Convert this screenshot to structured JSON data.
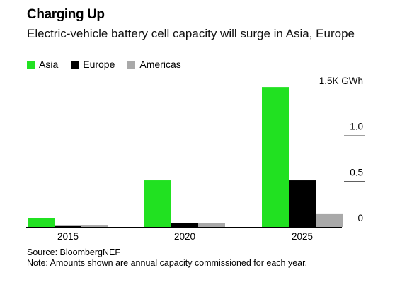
{
  "title": "Charging Up",
  "subtitle": "Electric-vehicle battery cell capacity will surge in Asia, Europe",
  "legend": [
    {
      "label": "Asia",
      "color": "#21e121"
    },
    {
      "label": "Europe",
      "color": "#000000"
    },
    {
      "label": "Americas",
      "color": "#a9a9a9"
    }
  ],
  "source": "Source: BloombergNEF",
  "note": "Note: Amounts shown are annual capacity commissioned for each year.",
  "chart_data": {
    "type": "bar",
    "title": "Charging Up",
    "subtitle": "Electric-vehicle battery cell capacity will surge in Asia, Europe",
    "categories": [
      "2015",
      "2020",
      "2025"
    ],
    "series": [
      {
        "name": "Asia",
        "color": "#21e121",
        "values": [
          0.1,
          0.51,
          1.53
        ]
      },
      {
        "name": "Europe",
        "color": "#000000",
        "values": [
          0.01,
          0.04,
          0.51
        ]
      },
      {
        "name": "Americas",
        "color": "#a9a9a9",
        "values": [
          0.015,
          0.04,
          0.14
        ]
      }
    ],
    "y_ticks": [
      {
        "value": 0,
        "label": "0"
      },
      {
        "value": 0.5,
        "label": "0.5"
      },
      {
        "value": 1.0,
        "label": "1.0"
      },
      {
        "value": 1.5,
        "label": "1.5K GWh"
      }
    ],
    "ylim": [
      0,
      1.5
    ],
    "y_axis_position": "right",
    "grid": false,
    "legend_position": "top-left",
    "xlabel": "",
    "ylabel": ""
  }
}
